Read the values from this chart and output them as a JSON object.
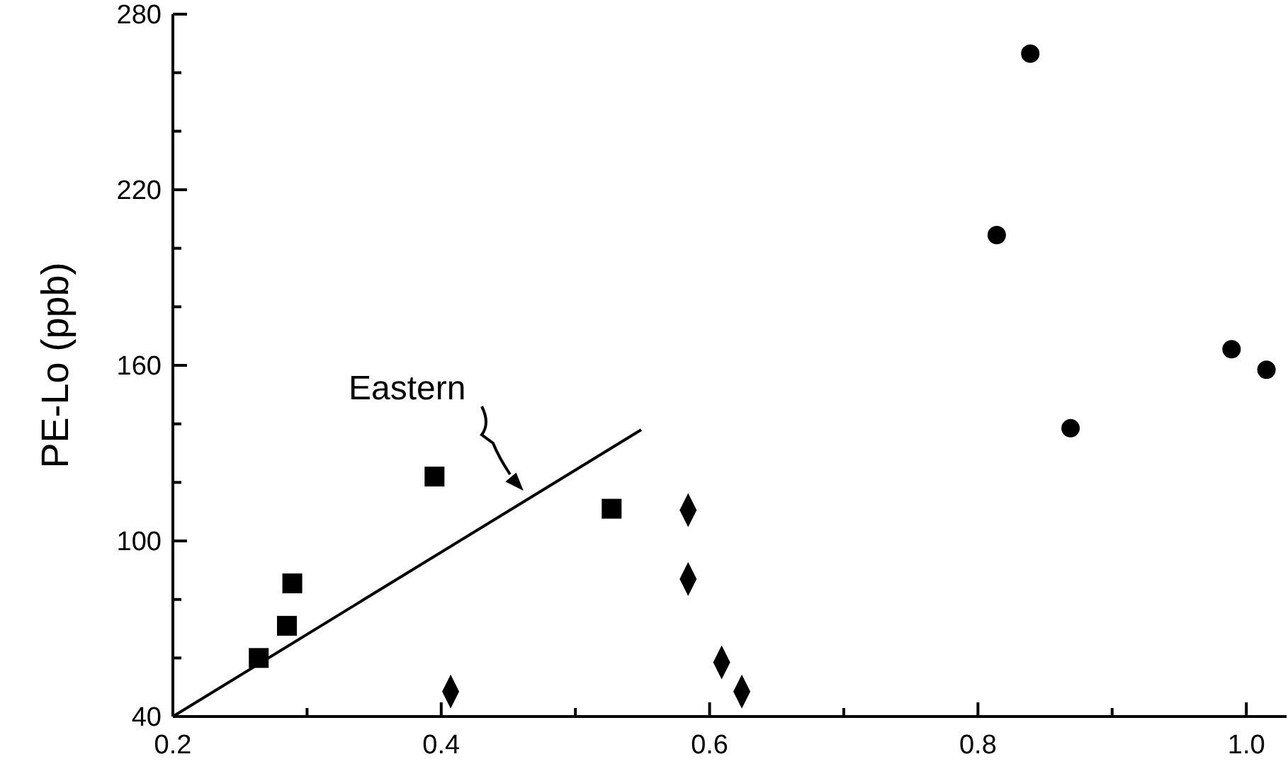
{
  "chart_data": {
    "type": "scatter",
    "ylabel": "PE-Lo (ppb)",
    "xlim": [
      0.2,
      1.03
    ],
    "ylim": [
      40,
      280
    ],
    "xticks": [
      0.2,
      {
        "value": 0.3,
        "label": null
      },
      0.4,
      {
        "value": 0.5,
        "label": null
      },
      0.6,
      {
        "value": 0.7,
        "label": null
      },
      0.8,
      {
        "value": 0.9,
        "label": null
      },
      {
        "value": 1.0,
        "label": "1.0"
      }
    ],
    "yticks": [
      40,
      {
        "value": 60,
        "label": null
      },
      {
        "value": 80,
        "label": null
      },
      100,
      {
        "value": 120,
        "label": null
      },
      {
        "value": 140,
        "label": null
      },
      160,
      {
        "value": 180,
        "label": null
      },
      {
        "value": 200,
        "label": null
      },
      220,
      {
        "value": 240,
        "label": null
      },
      {
        "value": 260,
        "label": null
      },
      280
    ],
    "grid": false,
    "series": [
      {
        "marker": "square",
        "color": "#000000",
        "x": [
          0.264,
          0.285,
          0.289,
          0.395,
          0.527
        ],
        "values": [
          60,
          71,
          85.5,
          122,
          111
        ]
      },
      {
        "marker": "diamond",
        "color": "#000000",
        "x": [
          0.407,
          0.584,
          0.584,
          0.609,
          0.624
        ],
        "values": [
          48.5,
          110.5,
          87,
          58.5,
          48.5
        ]
      },
      {
        "marker": "circle",
        "color": "#000000",
        "x": [
          0.814,
          0.839,
          0.869,
          0.989,
          1.015
        ],
        "values": [
          204.5,
          266.5,
          138.5,
          165.5,
          158.5
        ]
      },
      {
        "type": "line",
        "marker": "none",
        "line_style": "solid",
        "color": "#000000",
        "x": [
          0.2,
          0.549
        ],
        "values": [
          40,
          138
        ]
      }
    ],
    "annotations": [
      "Eastern"
    ]
  }
}
